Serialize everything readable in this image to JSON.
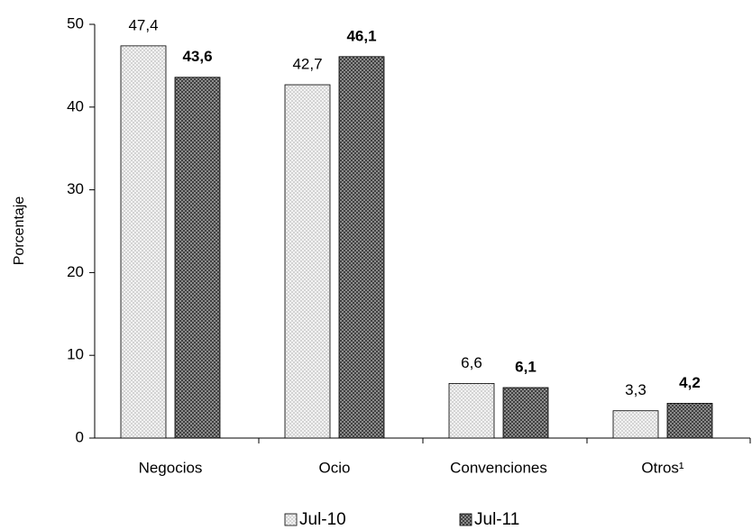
{
  "chart_data": {
    "type": "bar",
    "y_label": "Porcentaje",
    "categories": [
      "Negocios",
      "Ocio",
      "Convenciones",
      "Otros¹"
    ],
    "series": [
      {
        "name": "Jul-10",
        "color": "#d0d0d0",
        "values": [
          47.4,
          42.7,
          6.6,
          3.3
        ],
        "value_labels": [
          "47,4",
          "42,7",
          "6,6",
          "3,3"
        ],
        "label_bold": false
      },
      {
        "name": "Jul-11",
        "color": "#404040",
        "values": [
          43.6,
          46.1,
          6.1,
          4.2
        ],
        "value_labels": [
          "43,6",
          "46,1",
          "6,1",
          "4,2"
        ],
        "label_bold": true
      }
    ],
    "ylim": [
      0,
      50
    ],
    "yticks": [
      0,
      10,
      20,
      30,
      40,
      50
    ],
    "grid": false,
    "legend": "bottom"
  }
}
